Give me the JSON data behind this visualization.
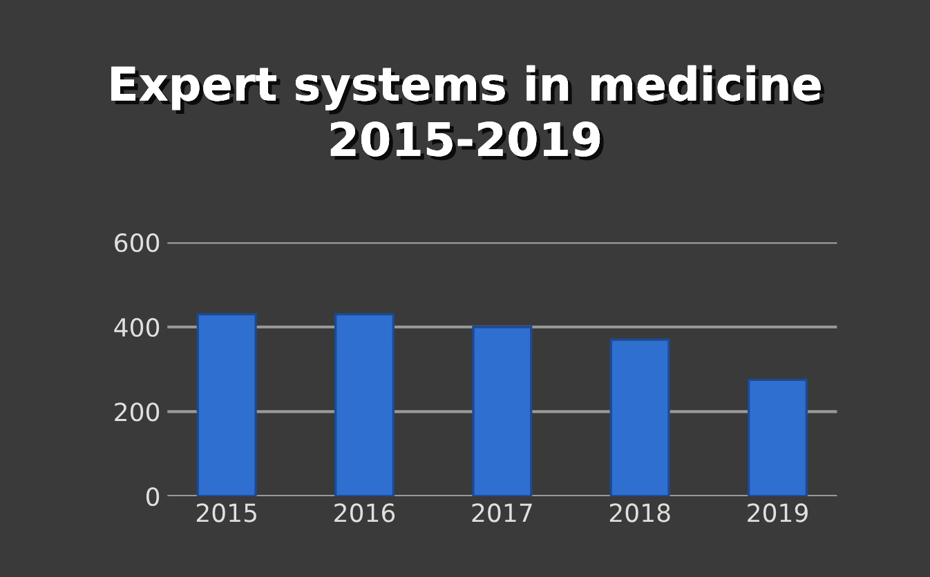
{
  "chart_data": {
    "type": "bar",
    "title": "Expert systems in medicine 2015-2019",
    "categories": [
      "2015",
      "2016",
      "2017",
      "2018",
      "2019"
    ],
    "values": [
      430,
      430,
      400,
      370,
      275
    ],
    "color": "#2f6fd0",
    "ylim": [
      0,
      600
    ],
    "yticks": [
      0,
      200,
      400,
      600
    ],
    "grid": "y"
  }
}
